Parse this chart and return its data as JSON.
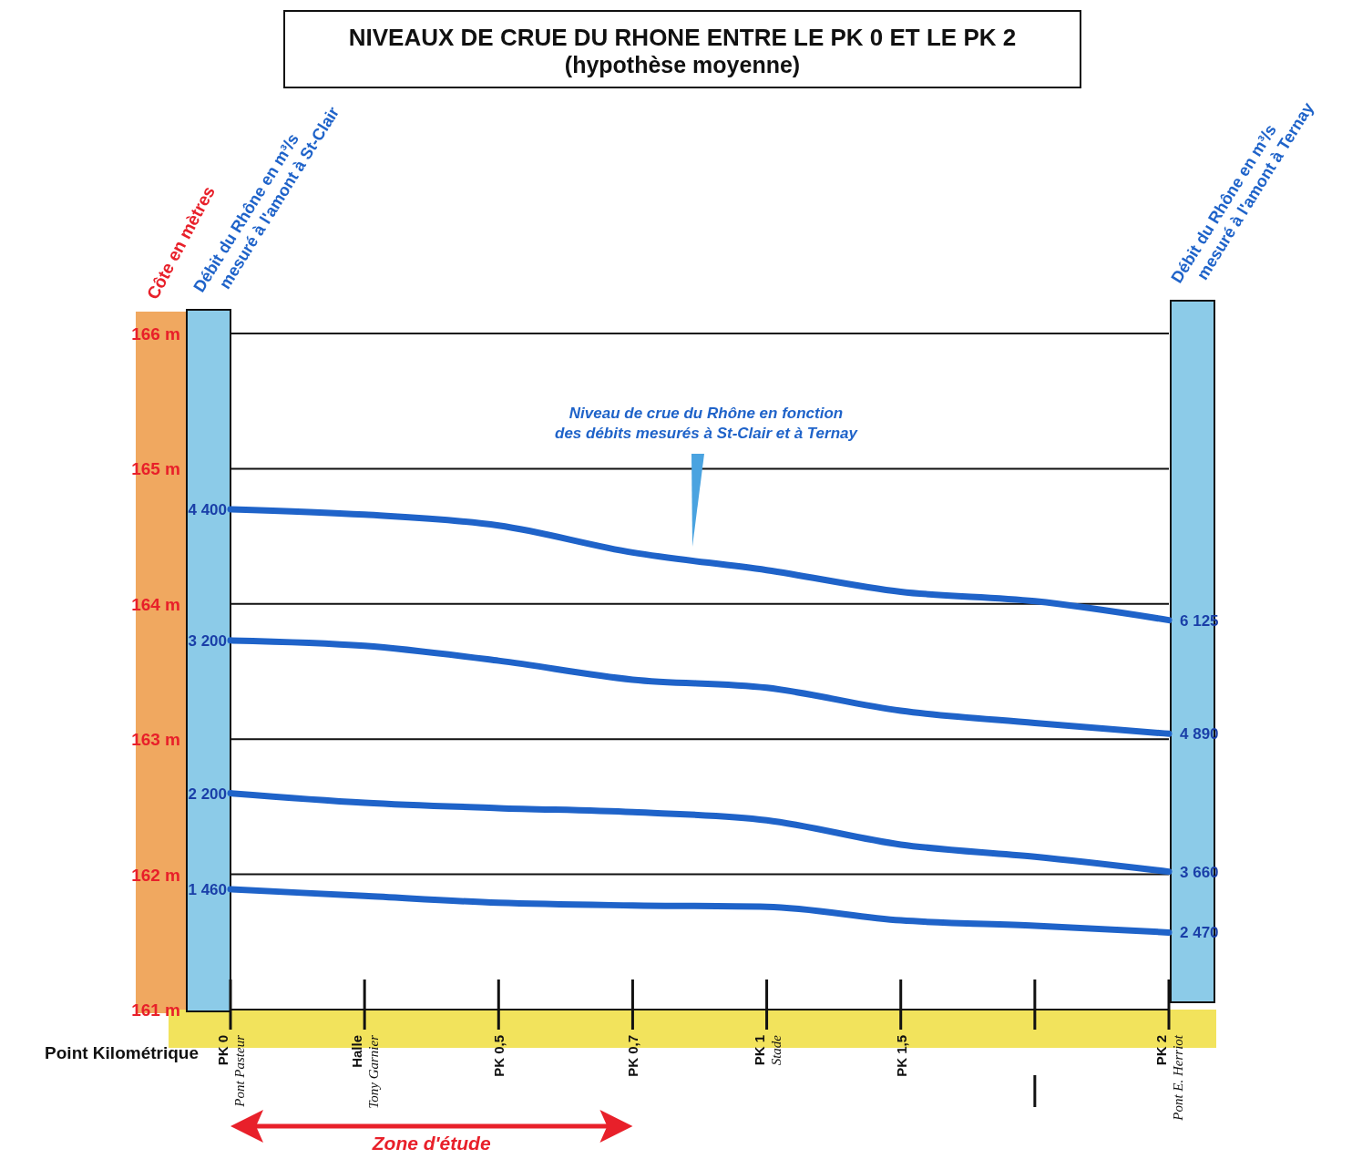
{
  "chart_data": {
    "type": "line",
    "title": "NIVEAUX DE CRUE DU RHONE ENTRE LE PK 0 ET LE PK 2",
    "subtitle": "(hypothèse moyenne)",
    "xlabel": "Point Kilométrique",
    "ylabel": "Côte en mètres",
    "categories": [
      "PK 0\nPont Pasteur",
      "Halle\nTony Garnier",
      "PK 0,5",
      "PK 0,7",
      "PK 1\nStade",
      "PK 1,5",
      null,
      "PK 2\nPont E. Herriot"
    ],
    "ylim": [
      161,
      166
    ],
    "yticks": [
      {
        "value": 161,
        "label": "161 m"
      },
      {
        "value": 162,
        "label": "162 m"
      },
      {
        "value": 163,
        "label": "163 m"
      },
      {
        "value": 164,
        "label": "164 m"
      },
      {
        "value": 165,
        "label": "165 m"
      },
      {
        "value": 166,
        "label": "166 m"
      }
    ],
    "grid": "y",
    "marker": "none",
    "line_style": "solid",
    "series": [
      {
        "color": "#1f63c9",
        "values": [
          164.7,
          164.66,
          164.58,
          164.38,
          164.25,
          164.09,
          164.02,
          163.88
        ]
      },
      {
        "color": "#1f63c9",
        "values": [
          163.73,
          163.69,
          163.58,
          163.44,
          163.38,
          163.21,
          163.12,
          163.04
        ]
      },
      {
        "color": "#1f63c9",
        "values": [
          162.6,
          162.53,
          162.49,
          162.46,
          162.4,
          162.22,
          162.13,
          162.02
        ]
      },
      {
        "color": "#1f63c9",
        "values": [
          161.89,
          161.84,
          161.79,
          161.77,
          161.76,
          161.66,
          161.62,
          161.57
        ]
      }
    ],
    "annotations": [
      "Niveau de crue du Rhône en fonction\ndes débits mesurés à St-Clair et à Ternay",
      "Débit du Rhône en m³/s\nmesuré à l'amont à St-Clair",
      "Débit du Rhône en m³/s\nmesuré à l'amont à Ternay",
      "Zone d'étude",
      {
        "text": "4 400",
        "x": "PK 0\nPont Pasteur",
        "y": 164.7
      },
      {
        "text": "3 200",
        "x": "PK 0\nPont Pasteur",
        "y": 163.73
      },
      {
        "text": "2 200",
        "x": "PK 0\nPont Pasteur",
        "y": 162.6
      },
      {
        "text": "1 460",
        "x": "PK 0\nPont Pasteur",
        "y": 161.89
      },
      {
        "text": "6 125",
        "x": "PK 2\nPont E. Herriot",
        "y": 163.88
      },
      {
        "text": "4 890",
        "x": "PK 2\nPont E. Herriot",
        "y": 163.04
      },
      {
        "text": "3 660",
        "x": "PK 2\nPont E. Herriot",
        "y": 162.02
      },
      {
        "text": "2 470",
        "x": "PK 2\nPont E. Herriot",
        "y": 161.57
      }
    ]
  }
}
